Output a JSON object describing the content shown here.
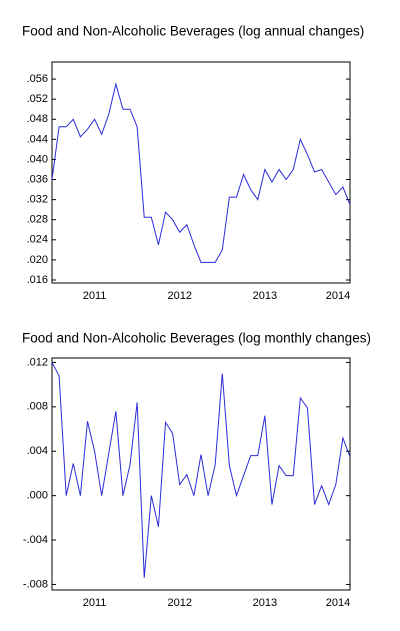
{
  "chart_data": [
    {
      "type": "line",
      "title": "Food and Non-Alcoholic Beverages (log annual changes)",
      "categories": [
        null,
        null,
        null,
        null,
        null,
        null,
        "2011",
        null,
        null,
        null,
        null,
        null,
        null,
        null,
        null,
        null,
        null,
        null,
        "2012",
        null,
        null,
        null,
        null,
        null,
        null,
        null,
        null,
        null,
        null,
        null,
        "2013",
        null,
        null,
        null,
        null,
        null,
        null,
        null,
        null,
        null,
        null,
        null,
        "2014"
      ],
      "series": [
        {
          "color": "#2b2bd9",
          "values": [
            0.036,
            0.0465,
            0.0465,
            0.048,
            0.0445,
            0.046,
            0.048,
            0.045,
            0.049,
            0.055,
            0.05,
            0.05,
            0.0465,
            0.0285,
            0.0285,
            0.023,
            0.0295,
            0.028,
            0.0255,
            0.027,
            0.023,
            0.0195,
            0.0195,
            0.0195,
            0.022,
            0.0325,
            0.0325,
            0.037,
            0.034,
            0.032,
            0.038,
            0.0355,
            0.038,
            0.036,
            0.038,
            0.044,
            0.041,
            0.0375,
            0.038,
            0.0355,
            0.033,
            0.0345,
            0.031
          ]
        }
      ],
      "ylim": [
        0.0154,
        0.0594
      ],
      "yticks": [
        {
          "value": 0.016,
          "label": ".016"
        },
        {
          "value": 0.02,
          "label": ".020"
        },
        {
          "value": 0.024,
          "label": ".024"
        },
        {
          "value": 0.028,
          "label": ".028"
        },
        {
          "value": 0.032,
          "label": ".032"
        },
        {
          "value": 0.036,
          "label": ".036"
        },
        {
          "value": 0.04,
          "label": ".040"
        },
        {
          "value": 0.044,
          "label": ".044"
        },
        {
          "value": 0.048,
          "label": ".048"
        },
        {
          "value": 0.052,
          "label": ".052"
        },
        {
          "value": 0.056,
          "label": ".056"
        }
      ]
    },
    {
      "type": "line",
      "title": "Food and Non-Alcoholic Beverages (log monthly changes)",
      "categories": [
        null,
        null,
        null,
        null,
        null,
        null,
        "2011",
        null,
        null,
        null,
        null,
        null,
        null,
        null,
        null,
        null,
        null,
        null,
        "2012",
        null,
        null,
        null,
        null,
        null,
        null,
        null,
        null,
        null,
        null,
        null,
        "2013",
        null,
        null,
        null,
        null,
        null,
        null,
        null,
        null,
        null,
        null,
        null,
        "2014"
      ],
      "series": [
        {
          "color": "#2b2bd9",
          "values": [
            0.012,
            0.0108,
            0,
            0.0029,
            0,
            0.0067,
            0.004,
            0,
            0.0038,
            0.0076,
            0,
            0.0028,
            0.0084,
            -0.0074,
            0,
            -0.0028,
            0.0066,
            0.0056,
            0.001,
            0.0019,
            0,
            0.0037,
            0,
            0.0028,
            0.011,
            0.0027,
            0,
            0.0018,
            0.0036,
            0.0036,
            0.0072,
            -0.0008,
            0.0027,
            0.0018,
            0.0018,
            0.0088,
            0.0079,
            -0.0008,
            0.0009,
            -0.0008,
            0.001,
            0.0052,
            0.0035
          ]
        }
      ],
      "ylim": [
        -0.0085,
        0.0124
      ],
      "yticks": [
        {
          "value": -0.008,
          "label": "-.008"
        },
        {
          "value": -0.004,
          "label": "-.004"
        },
        {
          "value": 0,
          "label": ".000"
        },
        {
          "value": 0.004,
          "label": ".004"
        },
        {
          "value": 0.008,
          "label": ".008"
        },
        {
          "value": 0.012,
          "label": ".012"
        }
      ]
    }
  ]
}
